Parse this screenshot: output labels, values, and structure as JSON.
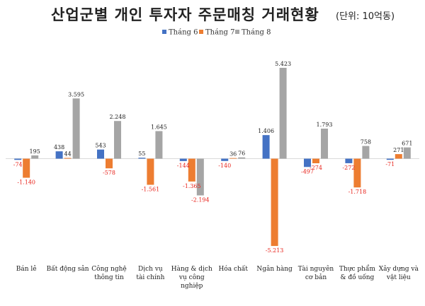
{
  "chart_data": {
    "type": "bar",
    "title": "산업군별 개인 투자자 주문매칭 거래현황",
    "subtitle": "(단위: 10억동)",
    "categories": [
      "Bán lẻ",
      "Bất động sản",
      "Công nghệ\nthông tin",
      "Dịch vụ\ntài chính",
      "Hàng & dịch\nvụ công\nnghiệp",
      "Hóa chất",
      "Ngân hàng",
      "Tài nguyên\ncơ bản",
      "Thực phẩm\n& đồ uống",
      "Xây dựng và\nvật liệu"
    ],
    "series": [
      {
        "name": "Tháng 6",
        "color": "#4472c4",
        "values": [
          -74,
          438,
          543,
          55,
          -144,
          -140,
          1406,
          -497,
          -272,
          -71
        ]
      },
      {
        "name": "Tháng 7",
        "color": "#ed7d31",
        "values": [
          -1140,
          44,
          -578,
          -1561,
          -1365,
          36,
          -5213,
          -274,
          -1718,
          271
        ]
      },
      {
        "name": "Tháng 8",
        "color": "#a5a5a5",
        "values": [
          195,
          3595,
          2248,
          1645,
          -2194,
          76,
          5423,
          1793,
          758,
          671
        ]
      }
    ],
    "value_labels": [
      [
        "-74",
        "438",
        "543",
        "55",
        "-144",
        "-140",
        "1.406",
        "-497",
        "-272",
        "-71"
      ],
      [
        "-1.140",
        "44",
        "-578",
        "-1.561",
        "-1.365",
        "36",
        "-5.213",
        "-274",
        "-1.718",
        "271"
      ],
      [
        "195",
        "3.595",
        "2.248",
        "1.645",
        "-2.194",
        "76",
        "5.423",
        "1.793",
        "758",
        "671"
      ]
    ],
    "ylim": [
      -5400,
      5600
    ],
    "grid": false,
    "legend_position": "top-center",
    "negative_label_color": "#e8231b"
  }
}
